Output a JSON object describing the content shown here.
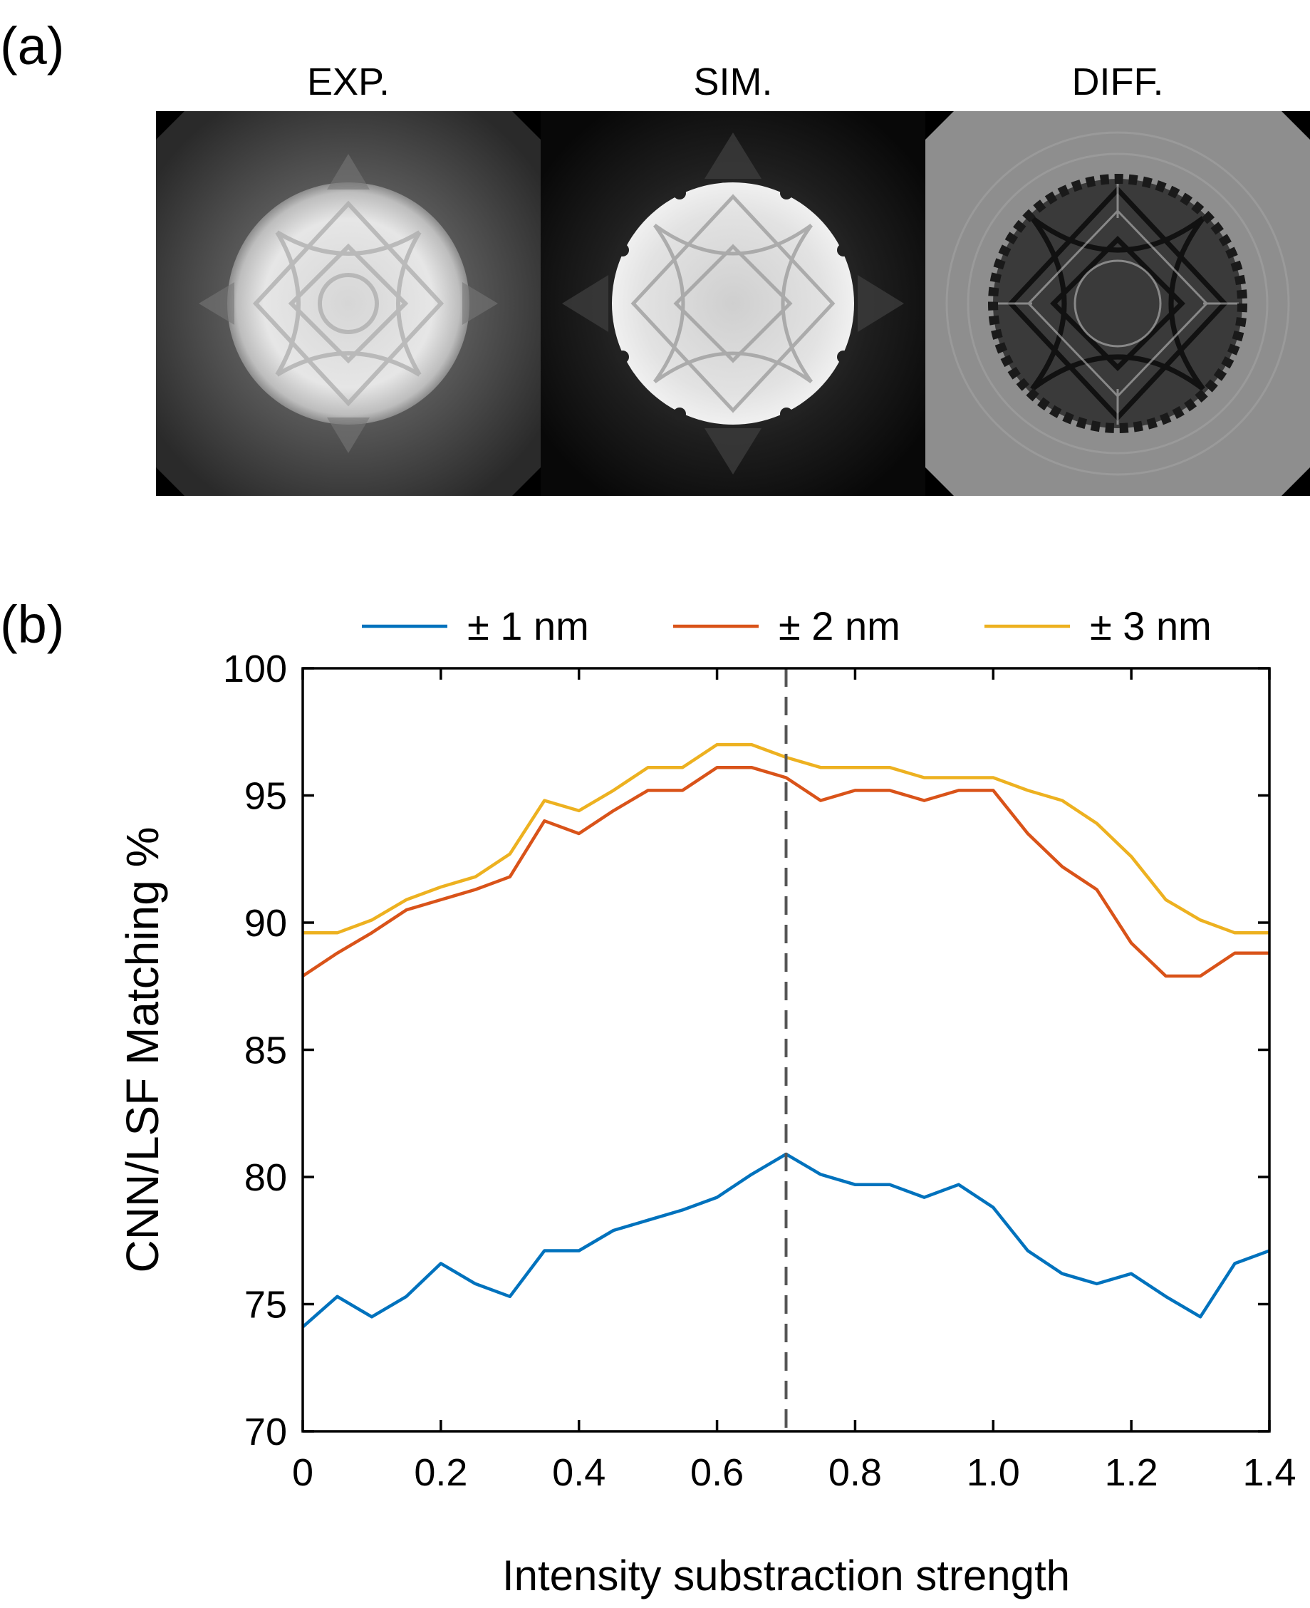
{
  "panel_a": {
    "label": "(a)",
    "images": [
      {
        "title": "EXP."
      },
      {
        "title": "SIM."
      },
      {
        "title": "DIFF."
      }
    ]
  },
  "panel_b": {
    "label": "(b)"
  },
  "colors": {
    "series1": "#0072bd",
    "series2": "#d95319",
    "series3": "#edb120",
    "marker": "#555555"
  },
  "chart_data": {
    "type": "line",
    "title": "",
    "xlabel": "Intensity substraction strength",
    "ylabel": "CNN/LSF Matching %",
    "xlim": [
      0,
      1.4
    ],
    "ylim": [
      70,
      100
    ],
    "xticks": [
      0,
      0.2,
      0.4,
      0.6,
      0.8,
      1.0,
      1.2,
      1.4
    ],
    "xtick_labels": [
      "0",
      "0.2",
      "0.4",
      "0.6",
      "0.8",
      "1.0",
      "1.2",
      "1.4"
    ],
    "yticks": [
      70,
      75,
      80,
      85,
      90,
      95,
      100
    ],
    "ytick_labels": [
      "70",
      "75",
      "80",
      "85",
      "90",
      "95",
      "100"
    ],
    "grid": false,
    "legend_position": "top-outside",
    "vline_x": 0.7,
    "x": [
      0,
      0.05,
      0.1,
      0.15,
      0.2,
      0.25,
      0.3,
      0.35,
      0.4,
      0.45,
      0.5,
      0.55,
      0.6,
      0.65,
      0.7,
      0.75,
      0.8,
      0.85,
      0.9,
      0.95,
      1.0,
      1.05,
      1.1,
      1.15,
      1.2,
      1.25,
      1.3,
      1.35,
      1.4
    ],
    "series": [
      {
        "name": "± 1 nm",
        "values": [
          74.1,
          75.3,
          74.5,
          75.3,
          76.6,
          75.8,
          75.3,
          77.1,
          77.1,
          77.9,
          78.3,
          78.7,
          79.2,
          80.1,
          80.9,
          80.1,
          79.7,
          79.7,
          79.2,
          79.7,
          78.8,
          77.1,
          76.2,
          75.8,
          76.2,
          75.3,
          74.5,
          76.6,
          77.1
        ]
      },
      {
        "name": "± 2 nm",
        "values": [
          87.9,
          88.8,
          89.6,
          90.5,
          90.9,
          91.3,
          91.8,
          94.0,
          93.5,
          94.4,
          95.2,
          95.2,
          96.1,
          96.1,
          95.7,
          94.8,
          95.2,
          95.2,
          94.8,
          95.2,
          95.2,
          93.5,
          92.2,
          91.3,
          89.2,
          87.9,
          87.9,
          88.8,
          88.8
        ]
      },
      {
        "name": "± 3 nm",
        "values": [
          89.6,
          89.6,
          90.1,
          90.9,
          91.4,
          91.8,
          92.7,
          94.8,
          94.4,
          95.2,
          96.1,
          96.1,
          97.0,
          97.0,
          96.5,
          96.1,
          96.1,
          96.1,
          95.7,
          95.7,
          95.7,
          95.2,
          94.8,
          93.9,
          92.6,
          90.9,
          90.1,
          89.6,
          89.6
        ]
      }
    ]
  }
}
